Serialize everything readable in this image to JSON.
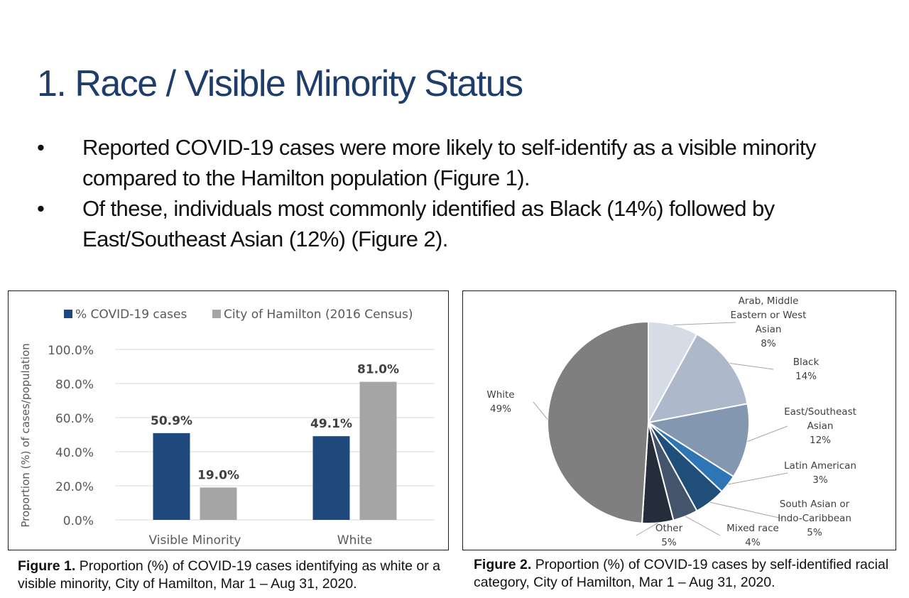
{
  "slide": {
    "title": "1. Race / Visible Minority Status",
    "bullets": [
      "Reported COVID-19 cases were more likely to self-identify as a visible minority compared to the Hamilton population (Figure 1).",
      "Of these, individuals most commonly identified as Black (14%) followed by East/Southeast Asian (12%) (Figure 2)."
    ],
    "bullet_symbol": "•"
  },
  "figure1": {
    "caption_label": "Figure 1.",
    "caption_text": " Proportion (%) of COVID-19 cases identifying as white or a visible minority, City of Hamilton, Mar 1 – Aug 31, 2020."
  },
  "figure2": {
    "caption_label": "Figure 2.",
    "caption_text": " Proportion (%) of COVID-19 cases by self-identified racial category, City of Hamilton, Mar 1 – Aug 31, 2020."
  },
  "chart_data": [
    {
      "type": "bar",
      "title": "",
      "xlabel": "",
      "ylabel": "Proportion (%) of cases/population",
      "categories": [
        "Visible Minority",
        "White"
      ],
      "series": [
        {
          "name": "% COVID-19 cases",
          "values": [
            50.9,
            49.1
          ],
          "labels": [
            "50.9%",
            "49.1%"
          ],
          "color": "#1f497d"
        },
        {
          "name": "City of Hamilton (2016 Census)",
          "values": [
            19.0,
            81.0
          ],
          "labels": [
            "19.0%",
            "81.0%"
          ],
          "color": "#a5a5a5"
        }
      ],
      "ylim": [
        0,
        100
      ],
      "yticks": [
        0,
        20,
        40,
        60,
        80,
        100
      ],
      "ytick_labels": [
        "0.0%",
        "20.0%",
        "40.0%",
        "60.0%",
        "80.0%",
        "100.0%"
      ],
      "grid": true,
      "legend": "top"
    },
    {
      "type": "pie",
      "title": "",
      "slices": [
        {
          "lines": [
            "Arab, Middle",
            "Eastern or West",
            "Asian",
            "8%"
          ],
          "value": 8,
          "color": "#d6dce5"
        },
        {
          "lines": [
            "Black",
            "14%"
          ],
          "value": 14,
          "color": "#adb9ca"
        },
        {
          "lines": [
            "East/Southeast",
            "Asian",
            "12%"
          ],
          "value": 12,
          "color": "#8497b0"
        },
        {
          "lines": [
            "Latin American",
            "3%"
          ],
          "value": 3,
          "color": "#2e75b6"
        },
        {
          "lines": [
            "South Asian or",
            "Indo-Caribbean",
            "5%"
          ],
          "value": 5,
          "color": "#1f4e79"
        },
        {
          "lines": [
            "Mixed race",
            "4%"
          ],
          "value": 4,
          "color": "#44546a"
        },
        {
          "lines": [
            "Other",
            "5%"
          ],
          "value": 5,
          "color": "#262d3a"
        },
        {
          "lines": [
            "White",
            "49%"
          ],
          "value": 49,
          "color": "#7f7f7f"
        }
      ],
      "legend": "none"
    }
  ]
}
